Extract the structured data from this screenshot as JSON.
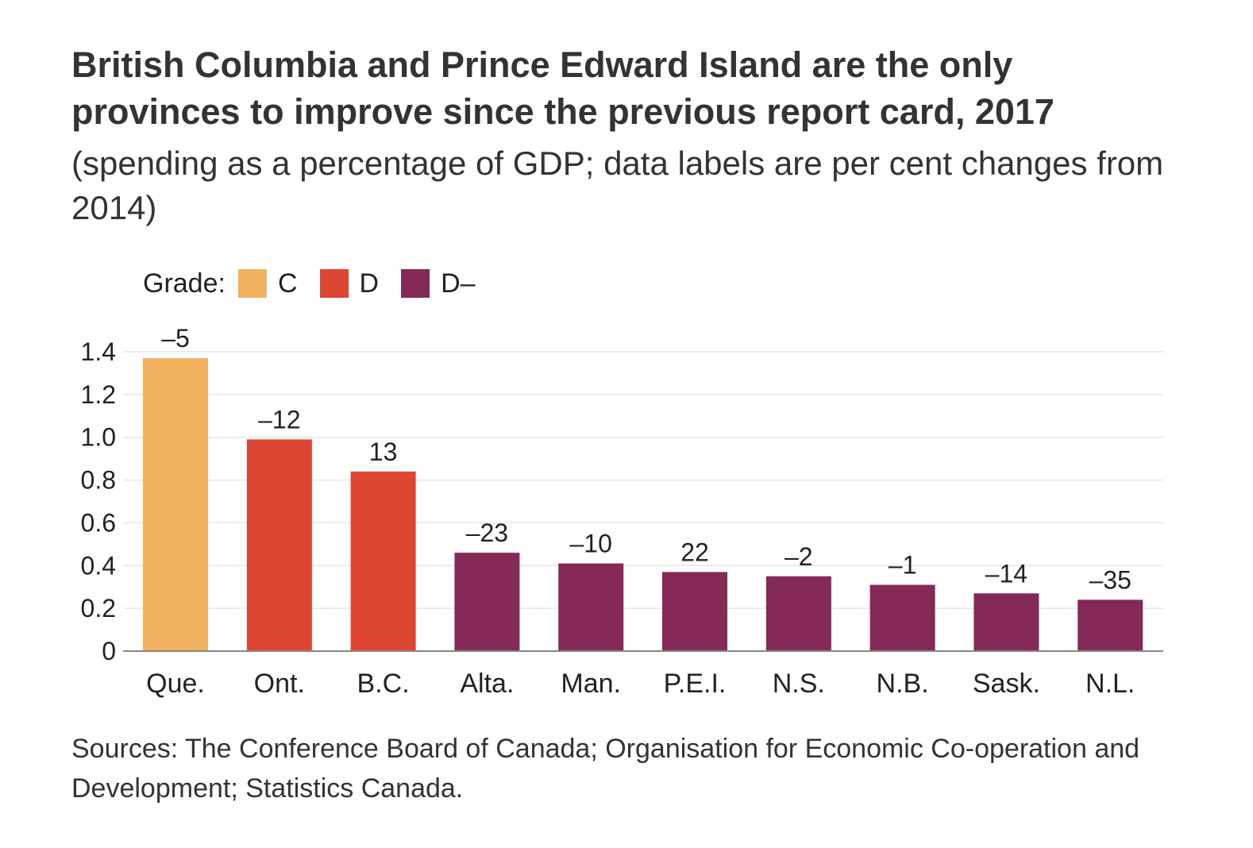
{
  "title": "British Columbia and Prince Edward Island are the only provinces to improve since the previous report card, 2017",
  "subtitle": "(spending as a percentage of GDP; data labels are per cent changes from 2014)",
  "source": "Sources: The Conference Board of Canada; Organisation for Economic Co-operation and Development; Statistics Canada.",
  "colors": {
    "C": "#f1b15e",
    "D": "#dc4632",
    "D-": "#852a56",
    "gridline": "#e6e6e6",
    "axis": "#888888"
  },
  "chart_data": {
    "type": "bar",
    "legend": {
      "title": "Grade:",
      "entries": [
        {
          "grade": "C",
          "label": "C"
        },
        {
          "grade": "D",
          "label": "D"
        },
        {
          "grade": "D-",
          "label": "D–"
        }
      ]
    },
    "categories": [
      "Que.",
      "Ont.",
      "B.C.",
      "Alta.",
      "Man.",
      "P.E.I.",
      "N.S.",
      "N.B.",
      "Sask.",
      "N.L."
    ],
    "values": [
      1.37,
      0.99,
      0.84,
      0.46,
      0.41,
      0.37,
      0.35,
      0.31,
      0.27,
      0.24
    ],
    "grades": [
      "C",
      "D",
      "D",
      "D-",
      "D-",
      "D-",
      "D-",
      "D-",
      "D-",
      "D-"
    ],
    "data_labels": [
      "–5",
      "–12",
      "13",
      "–23",
      "–10",
      "22",
      "–2",
      "–1",
      "–14",
      "–35"
    ],
    "yticks": [
      0,
      0.2,
      0.4,
      0.6,
      0.8,
      1.0,
      1.2,
      1.4
    ],
    "ytick_labels": [
      "0",
      "0.2",
      "0.4",
      "0.6",
      "0.8",
      "1.0",
      "1.2",
      "1.4"
    ],
    "ylim": [
      0,
      1.4
    ],
    "grid": true,
    "legend_position": "top-left"
  }
}
